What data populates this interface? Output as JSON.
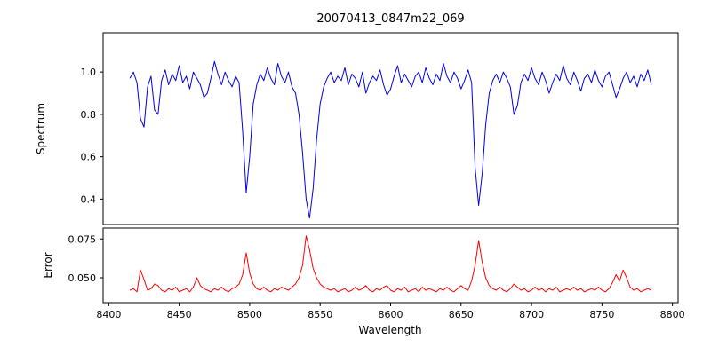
{
  "chart_data": {
    "type": "line",
    "title": "20070413_0847m22_069",
    "xlabel": "Wavelength",
    "x_start": 8415,
    "x_step": 2.5,
    "xlim": [
      8396,
      8804
    ],
    "xticks": [
      {
        "v": 8400,
        "label": "8400"
      },
      {
        "v": 8450,
        "label": "8450"
      },
      {
        "v": 8500,
        "label": "8500"
      },
      {
        "v": 8550,
        "label": "8550"
      },
      {
        "v": 8600,
        "label": "8600"
      },
      {
        "v": 8650,
        "label": "8650"
      },
      {
        "v": 8700,
        "label": "8700"
      },
      {
        "v": 8750,
        "label": "8750"
      },
      {
        "v": 8800,
        "label": "8800"
      }
    ],
    "grid": false,
    "legend": "none",
    "subplots": [
      {
        "name": "spectrum",
        "ylabel": "Spectrum",
        "color": "#0000e6",
        "ylim": [
          0.28,
          1.185
        ],
        "yticks": [
          {
            "v": 0.4,
            "label": "0.4"
          },
          {
            "v": 0.6,
            "label": "0.6"
          },
          {
            "v": 0.8,
            "label": "0.8"
          },
          {
            "v": 1.0,
            "label": "1.0"
          }
        ],
        "absorption_features_x": [
          8424,
          8434,
          8498,
          8542,
          8662
        ],
        "values": [
          0.97,
          1.0,
          0.95,
          0.78,
          0.74,
          0.93,
          0.98,
          0.82,
          0.8,
          0.96,
          1.01,
          0.94,
          0.99,
          0.96,
          1.03,
          0.95,
          0.98,
          0.92,
          1.0,
          0.97,
          0.94,
          0.88,
          0.9,
          0.97,
          1.05,
          0.99,
          0.94,
          1.0,
          0.96,
          0.93,
          0.98,
          0.95,
          0.72,
          0.43,
          0.6,
          0.85,
          0.94,
          0.99,
          0.96,
          1.02,
          0.97,
          0.94,
          1.04,
          0.98,
          0.95,
          1.0,
          0.93,
          0.9,
          0.8,
          0.62,
          0.4,
          0.31,
          0.45,
          0.68,
          0.85,
          0.93,
          0.97,
          1.0,
          0.95,
          0.98,
          0.96,
          1.02,
          0.94,
          0.99,
          0.97,
          0.93,
          1.0,
          0.9,
          0.95,
          0.98,
          0.96,
          1.01,
          0.94,
          0.89,
          0.92,
          0.98,
          1.03,
          0.95,
          0.99,
          0.96,
          0.93,
          0.98,
          1.0,
          0.95,
          1.02,
          0.97,
          0.94,
          0.99,
          0.96,
          1.04,
          0.98,
          0.95,
          1.0,
          0.97,
          0.92,
          0.96,
          1.01,
          0.95,
          0.55,
          0.37,
          0.52,
          0.75,
          0.9,
          0.96,
          0.99,
          0.95,
          1.0,
          0.97,
          0.93,
          0.8,
          0.84,
          0.95,
          0.99,
          0.96,
          1.02,
          0.97,
          0.94,
          1.0,
          0.96,
          0.9,
          0.95,
          0.99,
          0.96,
          1.03,
          0.97,
          0.94,
          1.0,
          0.96,
          0.91,
          0.97,
          0.99,
          0.95,
          1.01,
          0.96,
          0.93,
          0.98,
          1.0,
          0.94,
          0.88,
          0.92,
          0.97,
          1.0,
          0.95,
          0.98,
          0.93,
          0.99,
          0.96,
          1.01,
          0.94
        ]
      },
      {
        "name": "error",
        "ylabel": "Error",
        "color": "#ff0000",
        "ylim": [
          0.034,
          0.082
        ],
        "yticks": [
          {
            "v": 0.05,
            "label": "0.050"
          },
          {
            "v": 0.075,
            "label": "0.075"
          }
        ],
        "values": [
          0.042,
          0.043,
          0.041,
          0.055,
          0.049,
          0.042,
          0.043,
          0.046,
          0.045,
          0.042,
          0.041,
          0.043,
          0.042,
          0.044,
          0.041,
          0.042,
          0.043,
          0.041,
          0.044,
          0.05,
          0.045,
          0.043,
          0.042,
          0.041,
          0.043,
          0.042,
          0.044,
          0.042,
          0.041,
          0.043,
          0.044,
          0.046,
          0.052,
          0.066,
          0.053,
          0.046,
          0.043,
          0.042,
          0.044,
          0.042,
          0.041,
          0.043,
          0.042,
          0.044,
          0.043,
          0.042,
          0.044,
          0.046,
          0.05,
          0.058,
          0.077,
          0.068,
          0.056,
          0.05,
          0.046,
          0.044,
          0.043,
          0.042,
          0.043,
          0.041,
          0.042,
          0.043,
          0.041,
          0.042,
          0.044,
          0.042,
          0.043,
          0.045,
          0.042,
          0.041,
          0.043,
          0.042,
          0.044,
          0.045,
          0.042,
          0.041,
          0.043,
          0.042,
          0.044,
          0.041,
          0.042,
          0.043,
          0.041,
          0.044,
          0.042,
          0.043,
          0.042,
          0.041,
          0.043,
          0.042,
          0.044,
          0.042,
          0.041,
          0.043,
          0.045,
          0.043,
          0.042,
          0.048,
          0.058,
          0.074,
          0.06,
          0.05,
          0.045,
          0.043,
          0.042,
          0.044,
          0.042,
          0.041,
          0.043,
          0.046,
          0.044,
          0.042,
          0.043,
          0.041,
          0.042,
          0.044,
          0.042,
          0.043,
          0.041,
          0.043,
          0.042,
          0.044,
          0.041,
          0.042,
          0.043,
          0.042,
          0.044,
          0.042,
          0.043,
          0.041,
          0.042,
          0.043,
          0.042,
          0.044,
          0.042,
          0.041,
          0.043,
          0.047,
          0.052,
          0.048,
          0.055,
          0.05,
          0.044,
          0.042,
          0.043,
          0.041,
          0.042,
          0.043,
          0.042
        ]
      }
    ]
  }
}
